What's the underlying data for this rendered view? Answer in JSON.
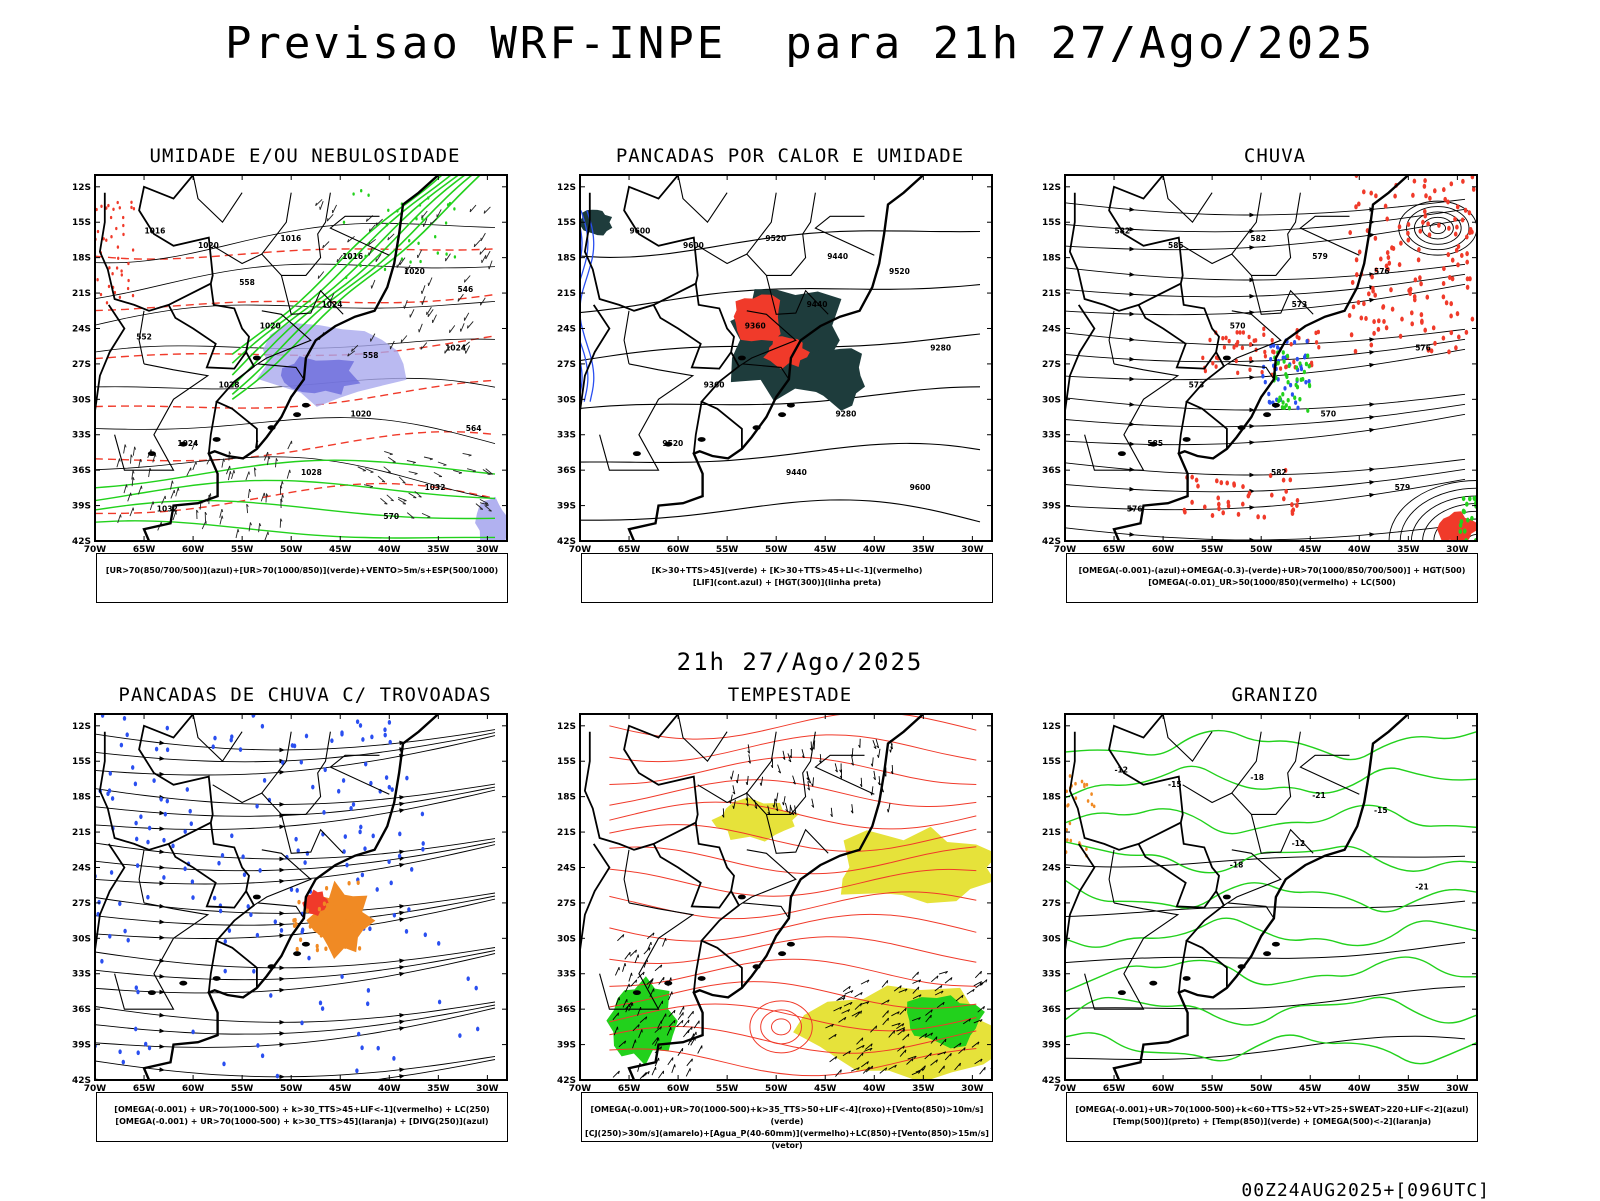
{
  "title": "Previsao WRF-INPE  para 21h 27/Ago/2025",
  "mid_time": "21h 27/Ago/2025",
  "footer": "00Z24AUG2025+[096UTC]",
  "colors": {
    "map_line": "#000000",
    "blue": "#2a4ff0",
    "green": "#22d11c",
    "red": "#f03a2a",
    "dark_teal": "#1e3c3c",
    "orange": "#f08a24",
    "yellow": "#e6e23a",
    "lavender": "#a9a9ee"
  },
  "chart_data": [
    {
      "type": "map",
      "title": "UMIDADE E/OU NEBULOSIDADE",
      "lat_ticks": [
        "12S",
        "15S",
        "18S",
        "21S",
        "24S",
        "27S",
        "30S",
        "33S",
        "36S",
        "39S",
        "42S"
      ],
      "lon_ticks": [
        "70W",
        "65W",
        "60W",
        "55W",
        "50W",
        "45W",
        "40W",
        "35W",
        "30W"
      ],
      "legend": [
        "[UR>70(850/700/500)](azul)+[UR>70(1000/850)](verde)+VENTO>5m/s+ESP(500/1000)"
      ],
      "contour_labels": [
        "1016",
        "1020",
        "1016",
        "1016",
        "1020",
        "1024",
        "1020",
        "1024",
        "1028",
        "1020",
        "1024",
        "1028",
        "1032",
        "1032",
        "570",
        "564",
        "558",
        "552",
        "546",
        "558"
      ]
    },
    {
      "type": "map",
      "title": "PANCADAS POR CALOR E UMIDADE",
      "lat_ticks": [
        "12S",
        "15S",
        "18S",
        "21S",
        "24S",
        "27S",
        "30S",
        "33S",
        "36S",
        "39S",
        "42S"
      ],
      "lon_ticks": [
        "70W",
        "65W",
        "60W",
        "55W",
        "50W",
        "45W",
        "40W",
        "35W",
        "30W"
      ],
      "legend": [
        "[K>30+TTS>45](verde) + [K>30+TTS>45+LI<-1](vermelho)",
        "[LIF](cont.azul) + [HGT(300)](linha preta)"
      ],
      "contour_labels": [
        "9600",
        "9600",
        "9520",
        "9440",
        "9520",
        "9440",
        "9360",
        "9280",
        "9360",
        "9280",
        "9520",
        "9440",
        "9600"
      ]
    },
    {
      "type": "map",
      "title": "CHUVA",
      "lat_ticks": [
        "12S",
        "15S",
        "18S",
        "21S",
        "24S",
        "27S",
        "30S",
        "33S",
        "36S",
        "39S",
        "42S"
      ],
      "lon_ticks": [
        "70W",
        "65W",
        "60W",
        "55W",
        "50W",
        "45W",
        "40W",
        "35W",
        "30W"
      ],
      "legend": [
        "[OMEGA(-0.001)-(azul)+OMEGA(-0.3)-(verde)+UR>70(1000/850/700/500)] + HGT(500)",
        "[OMEGA(-0.01)_UR>50(1000/850)(vermelho) + LC(500)"
      ],
      "contour_labels": [
        "582",
        "585",
        "582",
        "579",
        "576",
        "573",
        "570",
        "576",
        "573",
        "570",
        "585",
        "582",
        "579",
        "576"
      ]
    },
    {
      "type": "map",
      "title": "PANCADAS DE CHUVA C/ TROVOADAS",
      "lat_ticks": [
        "12S",
        "15S",
        "18S",
        "21S",
        "24S",
        "27S",
        "30S",
        "33S",
        "36S",
        "39S",
        "42S"
      ],
      "lon_ticks": [
        "70W",
        "65W",
        "60W",
        "55W",
        "50W",
        "45W",
        "40W",
        "35W",
        "30W"
      ],
      "legend": [
        "[OMEGA(-0.001) + UR>70(1000-500) + k>30_TTS>45+LIF<-1](vermelho) + LC(250)",
        "[OMEGA(-0.001) + UR>70(1000-500) + k>30_TTS>45](laranja) + [DIVG(250)](azul)"
      ],
      "contour_labels": []
    },
    {
      "type": "map",
      "title": "TEMPESTADE",
      "lat_ticks": [
        "12S",
        "15S",
        "18S",
        "21S",
        "24S",
        "27S",
        "30S",
        "33S",
        "36S",
        "39S",
        "42S"
      ],
      "lon_ticks": [
        "70W",
        "65W",
        "60W",
        "55W",
        "50W",
        "45W",
        "40W",
        "35W",
        "30W"
      ],
      "legend": [
        "[OMEGA(-0.001)+UR>70(1000-500)+k>35_TTS>50+LIF<-4](roxo)+[Vento(850)>10m/s](verde)",
        "[CJ(250)>30m/s](amarelo)+[Agua_P(40-60mm)](vermelho)+LC(850)+[Vento(850)>15m/s](vetor)"
      ],
      "contour_labels": []
    },
    {
      "type": "map",
      "title": "GRANIZO",
      "lat_ticks": [
        "12S",
        "15S",
        "18S",
        "21S",
        "24S",
        "27S",
        "30S",
        "33S",
        "36S",
        "39S",
        "42S"
      ],
      "lon_ticks": [
        "70W",
        "65W",
        "60W",
        "55W",
        "50W",
        "45W",
        "40W",
        "35W",
        "30W"
      ],
      "legend": [
        "[OMEGA(-0.001)+UR>70(1000-500)+k<60+TTS>52+VT>25+SWEAT>220+LIF<-2](azul)",
        "[Temp(500)](preto) + [Temp(850)](verde) + [OMEGA(500)<-2](laranja)"
      ],
      "contour_labels": [
        "-12",
        "-15",
        "-18",
        "-21",
        "-15",
        "-12",
        "-18",
        "-21"
      ]
    }
  ]
}
